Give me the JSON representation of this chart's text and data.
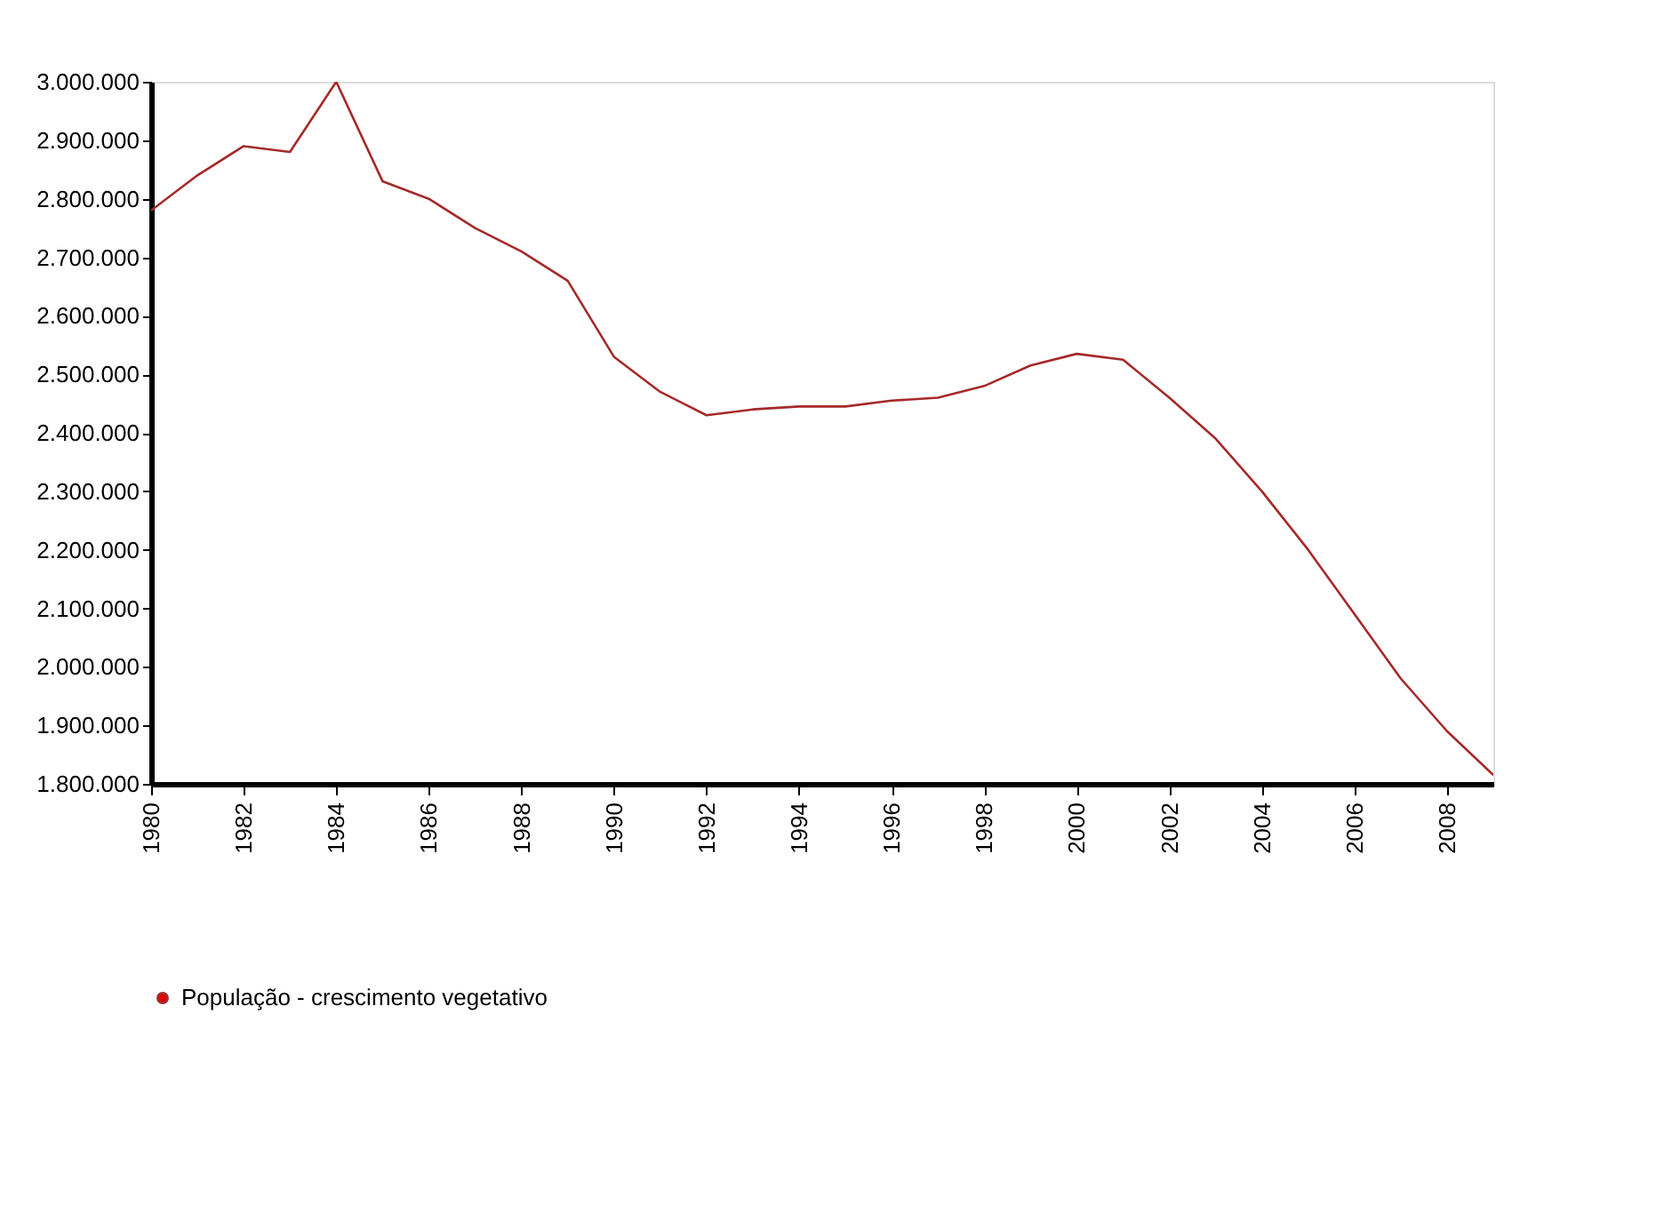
{
  "chart_data": {
    "type": "line",
    "x": [
      1980,
      1981,
      1982,
      1983,
      1984,
      1985,
      1986,
      1987,
      1988,
      1989,
      1990,
      1991,
      1992,
      1993,
      1994,
      1995,
      1996,
      1997,
      1998,
      1999,
      2000,
      2001,
      2002,
      2003,
      2004,
      2005,
      2006,
      2007,
      2008,
      2009
    ],
    "series": [
      {
        "name": "População - crescimento vegetativo",
        "color": "#a52a2a",
        "values": [
          2780000,
          2840000,
          2890000,
          2880000,
          3000000,
          2830000,
          2800000,
          2750000,
          2710000,
          2660000,
          2530000,
          2470000,
          2430000,
          2440000,
          2445000,
          2445000,
          2455000,
          2460000,
          2480000,
          2515000,
          2535000,
          2525000,
          2460000,
          2390000,
          2300000,
          2200000,
          2090000,
          1980000,
          1890000,
          1815000
        ]
      }
    ],
    "xlim": [
      1980,
      2009
    ],
    "xticks": [
      1980,
      1982,
      1984,
      1986,
      1988,
      1990,
      1992,
      1994,
      1996,
      1998,
      2000,
      2002,
      2004,
      2006,
      2008
    ],
    "ylim": [
      1800000,
      3000000
    ],
    "yticks": [
      {
        "value": 1800000,
        "label": "1.800.000"
      },
      {
        "value": 1900000,
        "label": "1.900.000"
      },
      {
        "value": 2000000,
        "label": "2.000.000"
      },
      {
        "value": 2100000,
        "label": "2.100.000"
      },
      {
        "value": 2200000,
        "label": "2.200.000"
      },
      {
        "value": 2300000,
        "label": "2.300.000"
      },
      {
        "value": 2400000,
        "label": "2.400.000"
      },
      {
        "value": 2500000,
        "label": "2.500.000"
      },
      {
        "value": 2600000,
        "label": "2.600.000"
      },
      {
        "value": 2700000,
        "label": "2.700.000"
      },
      {
        "value": 2800000,
        "label": "2.800.000"
      },
      {
        "value": 2900000,
        "label": "2.900.000"
      },
      {
        "value": 3000000,
        "label": "3.000.000"
      }
    ],
    "legend": "bottom",
    "grid": false,
    "marker": "none",
    "line_style": "solid"
  }
}
